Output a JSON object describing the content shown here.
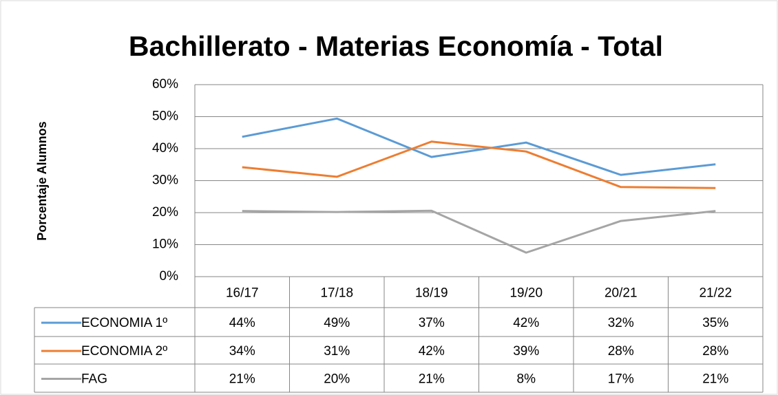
{
  "chart_data": {
    "type": "line",
    "title": "Bachillerato - Materias Economía - Total",
    "y_label": "Porcentaje Alumnos",
    "categories": [
      "16/17",
      "17/18",
      "18/19",
      "19/20",
      "20/21",
      "21/22"
    ],
    "ylim": [
      0,
      60
    ],
    "yticks": [
      {
        "value": 0,
        "label": "0%"
      },
      {
        "value": 10,
        "label": "10%"
      },
      {
        "value": 20,
        "label": "20%"
      },
      {
        "value": 30,
        "label": "30%"
      },
      {
        "value": 40,
        "label": "40%"
      },
      {
        "value": 50,
        "label": "50%"
      },
      {
        "value": 60,
        "label": "60%"
      }
    ],
    "grid": true,
    "series": [
      {
        "name": "ECONOMIA 1º",
        "color": "#5b9bd5",
        "values": [
          43.7,
          49.4,
          37.4,
          41.9,
          31.8,
          35.1
        ],
        "value_labels": [
          "44%",
          "49%",
          "37%",
          "42%",
          "32%",
          "35%"
        ]
      },
      {
        "name": "ECONOMIA 2º",
        "color": "#ed7d31",
        "values": [
          34.2,
          31.2,
          42.2,
          39.1,
          28.0,
          27.7
        ],
        "value_labels": [
          "34%",
          "31%",
          "42%",
          "39%",
          "28%",
          "28%"
        ]
      },
      {
        "name": "FAG",
        "color": "#a5a5a5",
        "values": [
          20.5,
          20.2,
          20.6,
          7.5,
          17.4,
          20.5
        ],
        "value_labels": [
          "21%",
          "20%",
          "21%",
          "8%",
          "17%",
          "21%"
        ]
      }
    ]
  }
}
